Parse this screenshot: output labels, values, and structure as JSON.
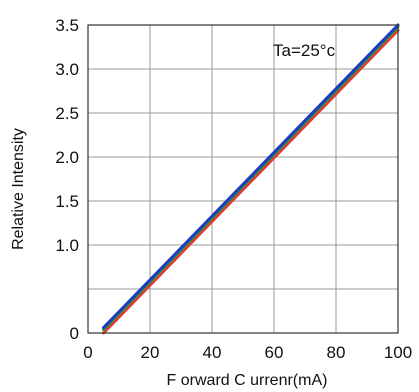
{
  "chart_data": {
    "type": "line",
    "xlabel": "F orward C urrenr(mA)",
    "ylabel": "Relative Intensity",
    "annotation": "Ta=25°c",
    "xlim": [
      0,
      100
    ],
    "ylim": [
      0,
      3.5
    ],
    "x_ticks": [
      0,
      20,
      40,
      60,
      80,
      100
    ],
    "x_tick_labels": [
      "0",
      "20",
      "40",
      "60",
      "80",
      "100"
    ],
    "y_ticks": [
      0,
      0.5,
      1.0,
      1.5,
      2.0,
      2.5,
      3.0,
      3.5
    ],
    "y_tick_labels": [
      "0",
      "",
      "1.0",
      "1.5",
      "2.0",
      "2.5",
      "3.0",
      "3.5"
    ],
    "grid": true,
    "series": [
      {
        "color": "#e53935",
        "x": [
          5,
          100
        ],
        "y": [
          0.0,
          3.44
        ]
      },
      {
        "color": "#1a9c3a",
        "x": [
          5,
          100
        ],
        "y": [
          0.04,
          3.48
        ]
      },
      {
        "color": "#1f3bbf",
        "x": [
          5,
          100
        ],
        "y": [
          0.06,
          3.5
        ]
      }
    ]
  }
}
